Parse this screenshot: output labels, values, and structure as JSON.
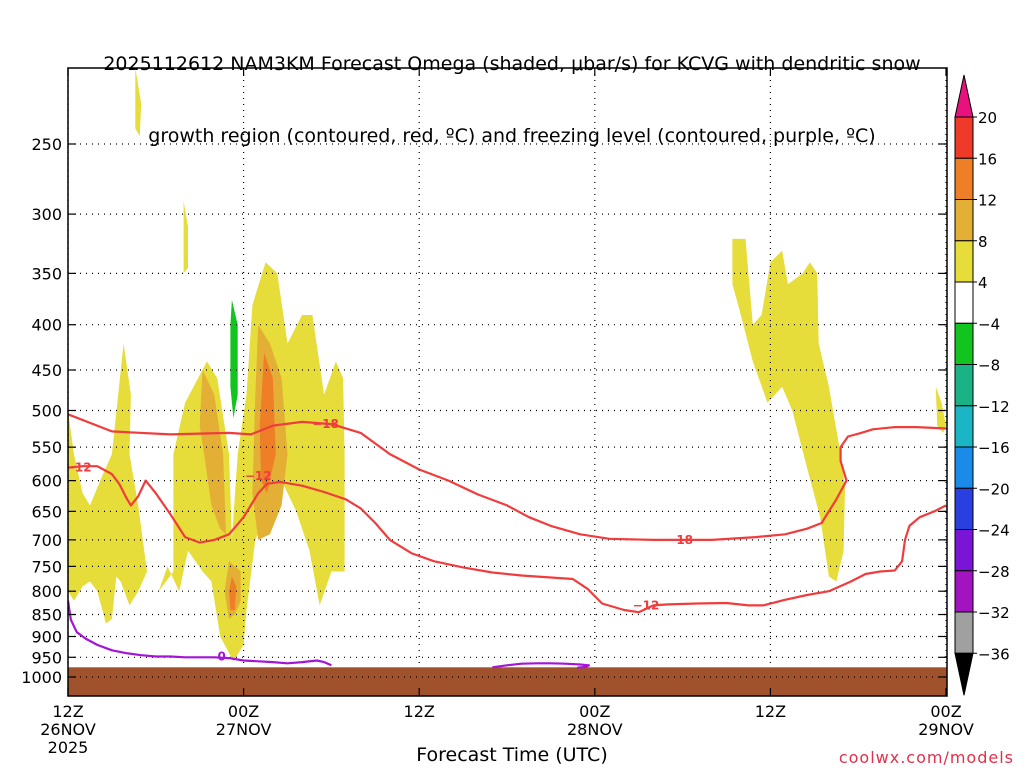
{
  "chart_data": {
    "type": "time-height cross section",
    "title_line1": "2025112612 NAM3KM Forecast Omega (shaded, μbar/s) for KCVG with dendritic snow",
    "title_line2": "growth region (contoured, red, ºC) and freezing level (contoured, purple, ºC)",
    "xlabel": "Forecast Time (UTC)",
    "ylabel": "",
    "x_ticks": [
      {
        "hour": 0,
        "line1": "12Z",
        "line2": "26NOV",
        "line3": "2025"
      },
      {
        "hour": 12,
        "line1": "00Z",
        "line2": "27NOV",
        "line3": ""
      },
      {
        "hour": 24,
        "line1": "12Z",
        "line2": "",
        "line3": ""
      },
      {
        "hour": 36,
        "line1": "00Z",
        "line2": "28NOV",
        "line3": ""
      },
      {
        "hour": 48,
        "line1": "12Z",
        "line2": "",
        "line3": ""
      },
      {
        "hour": 60,
        "line1": "00Z",
        "line2": "29NOV",
        "line3": ""
      }
    ],
    "xlim_hours": [
      0,
      60
    ],
    "y_ticks_hpa": [
      250,
      300,
      350,
      400,
      450,
      500,
      550,
      600,
      650,
      700,
      750,
      800,
      850,
      900,
      950,
      1000
    ],
    "ylim_hpa": [
      1030,
      200
    ],
    "surface_pressure_hpa": 975,
    "colorbar": {
      "labels": [
        "20",
        "16",
        "12",
        "8",
        "4",
        "−4",
        "−8",
        "−12",
        "−16",
        "−20",
        "−24",
        "−28",
        "−32",
        "−36"
      ],
      "colors": [
        "#e8127e",
        "#ef3a2a",
        "#ef7f26",
        "#e3b035",
        "#e6dc3a",
        "#ffffff",
        "#12c41e",
        "#19b386",
        "#1ab6c6",
        "#1a8be8",
        "#2a3fe0",
        "#7a14d6",
        "#a214c0",
        "#a0a0a0",
        "#000000"
      ]
    },
    "omega_fill_colors": {
      "4_8": "#e6dc3a",
      "8_12": "#e3b035",
      "12_16": "#ef7f26",
      "-8_-4": "#12c41e"
    },
    "omega_regions": [
      {
        "level": "4_8",
        "points": [
          [
            0.0,
            500
          ],
          [
            0.4,
            560
          ],
          [
            1.0,
            620
          ],
          [
            1.5,
            640
          ],
          [
            2.2,
            600
          ],
          [
            3.0,
            560
          ],
          [
            3.8,
            420
          ],
          [
            4.3,
            480
          ],
          [
            4.2,
            560
          ],
          [
            4.8,
            640
          ],
          [
            5.4,
            760
          ],
          [
            6.2,
            800
          ],
          [
            7.2,
            760
          ],
          [
            7.2,
            560
          ],
          [
            8.0,
            490
          ],
          [
            9.5,
            440
          ],
          [
            10.2,
            460
          ],
          [
            11.0,
            560
          ],
          [
            11.2,
            700
          ],
          [
            11.6,
            560
          ],
          [
            12.2,
            480
          ],
          [
            12.6,
            380
          ],
          [
            13.5,
            340
          ],
          [
            14.3,
            350
          ],
          [
            15.0,
            420
          ],
          [
            16.0,
            390
          ],
          [
            16.7,
            390
          ],
          [
            17.5,
            480
          ],
          [
            18.3,
            440
          ],
          [
            18.8,
            460
          ],
          [
            18.9,
            560
          ],
          [
            18.9,
            760
          ],
          [
            18.0,
            760
          ],
          [
            17.2,
            830
          ],
          [
            16.5,
            720
          ],
          [
            15.6,
            650
          ],
          [
            14.6,
            600
          ],
          [
            13.8,
            640
          ],
          [
            12.8,
            700
          ],
          [
            12.2,
            840
          ],
          [
            12.0,
            920
          ],
          [
            11.3,
            960
          ],
          [
            10.4,
            900
          ],
          [
            9.8,
            780
          ],
          [
            9.2,
            760
          ],
          [
            8.2,
            720
          ],
          [
            7.6,
            800
          ],
          [
            6.8,
            750
          ],
          [
            6.2,
            800
          ],
          [
            5.4,
            760
          ],
          [
            4.8,
            800
          ],
          [
            4.2,
            830
          ],
          [
            3.6,
            780
          ],
          [
            3.3,
            770
          ],
          [
            3.0,
            860
          ],
          [
            2.6,
            870
          ],
          [
            2.0,
            800
          ],
          [
            1.5,
            780
          ],
          [
            1.0,
            790
          ],
          [
            0.4,
            820
          ],
          [
            0.0,
            800
          ]
        ]
      },
      {
        "level": "4_8",
        "points": [
          [
            4.6,
            200
          ],
          [
            5.0,
            225
          ],
          [
            4.9,
            245
          ],
          [
            4.6,
            240
          ]
        ]
      },
      {
        "level": "4_8",
        "points": [
          [
            7.9,
            290
          ],
          [
            8.2,
            310
          ],
          [
            8.2,
            345
          ],
          [
            7.9,
            350
          ]
        ]
      },
      {
        "level": "4_8",
        "points": [
          [
            45.4,
            320
          ],
          [
            46.3,
            320
          ],
          [
            46.8,
            400
          ],
          [
            47.4,
            390
          ],
          [
            48.0,
            340
          ],
          [
            48.8,
            330
          ],
          [
            49.2,
            360
          ],
          [
            50.2,
            350
          ],
          [
            50.7,
            340
          ],
          [
            51.2,
            350
          ],
          [
            51.3,
            420
          ],
          [
            52.0,
            470
          ],
          [
            52.8,
            560
          ],
          [
            53.1,
            610
          ],
          [
            53.0,
            720
          ],
          [
            52.5,
            780
          ],
          [
            52.0,
            770
          ],
          [
            51.4,
            660
          ],
          [
            50.5,
            580
          ],
          [
            49.5,
            500
          ],
          [
            48.8,
            470
          ],
          [
            47.8,
            490
          ],
          [
            46.8,
            440
          ],
          [
            45.8,
            380
          ],
          [
            45.4,
            360
          ]
        ]
      },
      {
        "level": "4_8",
        "points": [
          [
            59.3,
            470
          ],
          [
            59.7,
            490
          ],
          [
            60.0,
            520
          ],
          [
            59.8,
            530
          ],
          [
            59.4,
            520
          ]
        ]
      },
      {
        "level": "8_12",
        "points": [
          [
            9.2,
            450
          ],
          [
            10.0,
            480
          ],
          [
            10.6,
            560
          ],
          [
            10.8,
            690
          ],
          [
            10.4,
            680
          ],
          [
            9.8,
            640
          ],
          [
            9.3,
            560
          ],
          [
            9.0,
            520
          ]
        ]
      },
      {
        "level": "8_12",
        "points": [
          [
            13.0,
            400
          ],
          [
            13.8,
            420
          ],
          [
            14.6,
            460
          ],
          [
            15.0,
            560
          ],
          [
            14.6,
            640
          ],
          [
            13.8,
            690
          ],
          [
            13.0,
            700
          ],
          [
            12.6,
            620
          ],
          [
            12.8,
            480
          ]
        ]
      },
      {
        "level": "8_12",
        "points": [
          [
            11.0,
            740
          ],
          [
            11.8,
            760
          ],
          [
            11.8,
            820
          ],
          [
            11.4,
            850
          ],
          [
            11.0,
            860
          ],
          [
            10.7,
            800
          ]
        ]
      },
      {
        "level": "12_16",
        "points": [
          [
            13.4,
            430
          ],
          [
            14.0,
            460
          ],
          [
            14.2,
            560
          ],
          [
            13.6,
            620
          ],
          [
            13.2,
            600
          ],
          [
            13.1,
            520
          ]
        ]
      },
      {
        "level": "12_16",
        "points": [
          [
            11.2,
            770
          ],
          [
            11.5,
            790
          ],
          [
            11.4,
            840
          ],
          [
            11.1,
            840
          ],
          [
            11.0,
            800
          ]
        ]
      },
      {
        "level": "-8_-4",
        "points": [
          [
            11.2,
            375
          ],
          [
            11.6,
            400
          ],
          [
            11.6,
            480
          ],
          [
            11.3,
            510
          ],
          [
            11.1,
            470
          ],
          [
            11.1,
            400
          ]
        ]
      }
    ],
    "contours": [
      {
        "label": "-18",
        "color": "#f03c3c",
        "label_positions": [
          [
            17.6,
            518
          ],
          [
            41.8,
            700
          ]
        ],
        "points": [
          [
            0.0,
            505
          ],
          [
            3.0,
            528
          ],
          [
            7.0,
            532
          ],
          [
            11.0,
            530
          ],
          [
            12.5,
            532
          ],
          [
            14.0,
            520
          ],
          [
            16.0,
            515
          ],
          [
            18.0,
            518
          ],
          [
            20.0,
            530
          ],
          [
            22.0,
            560
          ],
          [
            24.0,
            583
          ],
          [
            26.0,
            600
          ],
          [
            28.0,
            622
          ],
          [
            30.0,
            640
          ],
          [
            31.5,
            660
          ],
          [
            33.0,
            675
          ],
          [
            35.0,
            690
          ],
          [
            37.0,
            698
          ],
          [
            40.0,
            700
          ],
          [
            44.0,
            700
          ],
          [
            47.0,
            695
          ],
          [
            49.0,
            690
          ],
          [
            50.5,
            680
          ],
          [
            51.5,
            670
          ],
          [
            52.5,
            630
          ],
          [
            53.2,
            600
          ],
          [
            52.8,
            570
          ],
          [
            52.8,
            550
          ],
          [
            53.3,
            535
          ],
          [
            54.2,
            530
          ],
          [
            55.0,
            525
          ],
          [
            56.5,
            522
          ],
          [
            58.0,
            522
          ],
          [
            60.0,
            524
          ]
        ]
      },
      {
        "label": "-12",
        "color": "#f03c3c",
        "label_positions": [
          [
            0.7,
            580
          ],
          [
            13.0,
            593
          ],
          [
            39.5,
            830
          ]
        ],
        "points": [
          [
            0.0,
            580
          ],
          [
            1.0,
            578
          ],
          [
            2.0,
            578
          ],
          [
            3.0,
            590
          ],
          [
            3.5,
            605
          ],
          [
            4.0,
            628
          ],
          [
            4.3,
            640
          ],
          [
            4.8,
            625
          ],
          [
            5.3,
            600
          ],
          [
            6.0,
            620
          ],
          [
            7.0,
            655
          ],
          [
            8.0,
            695
          ],
          [
            9.0,
            705
          ],
          [
            10.0,
            700
          ],
          [
            11.0,
            690
          ],
          [
            12.0,
            660
          ],
          [
            13.0,
            620
          ],
          [
            13.6,
            605
          ],
          [
            14.5,
            602
          ],
          [
            16.0,
            608
          ],
          [
            17.5,
            618
          ],
          [
            19.0,
            630
          ],
          [
            20.0,
            645
          ],
          [
            21.0,
            670
          ],
          [
            22.0,
            700
          ],
          [
            23.5,
            725
          ],
          [
            25.0,
            740
          ],
          [
            27.0,
            752
          ],
          [
            29.0,
            762
          ],
          [
            31.0,
            768
          ],
          [
            33.0,
            772
          ],
          [
            34.5,
            775
          ],
          [
            35.5,
            795
          ],
          [
            36.5,
            826
          ],
          [
            38.0,
            840
          ],
          [
            39.0,
            845
          ],
          [
            40.0,
            830
          ],
          [
            41.0,
            828
          ],
          [
            43.0,
            826
          ],
          [
            45.0,
            825
          ],
          [
            46.5,
            830
          ],
          [
            47.5,
            830
          ],
          [
            49.0,
            818
          ],
          [
            50.5,
            808
          ],
          [
            52.0,
            800
          ],
          [
            53.5,
            780
          ],
          [
            54.5,
            765
          ],
          [
            55.5,
            760
          ],
          [
            56.5,
            758
          ],
          [
            57.0,
            740
          ],
          [
            57.2,
            700
          ],
          [
            57.5,
            675
          ],
          [
            58.2,
            660
          ],
          [
            59.2,
            650
          ],
          [
            60.0,
            640
          ]
        ]
      },
      {
        "label": "0",
        "color": "#a414d6",
        "label_positions": [
          [
            10.5,
            948
          ]
        ],
        "points": [
          [
            0.0,
            820
          ],
          [
            0.2,
            862
          ],
          [
            0.6,
            890
          ],
          [
            1.2,
            905
          ],
          [
            2.0,
            920
          ],
          [
            3.0,
            933
          ],
          [
            4.0,
            940
          ],
          [
            5.0,
            945
          ],
          [
            6.0,
            948
          ],
          [
            7.0,
            948
          ],
          [
            8.0,
            950
          ],
          [
            9.0,
            950
          ],
          [
            10.0,
            950
          ],
          [
            11.0,
            952
          ],
          [
            12.0,
            958
          ],
          [
            13.0,
            960
          ],
          [
            14.0,
            962
          ],
          [
            15.0,
            965
          ],
          [
            16.0,
            962
          ],
          [
            17.0,
            958
          ],
          [
            17.5,
            962
          ],
          [
            18.0,
            970
          ]
        ]
      },
      {
        "label": "",
        "color": "#a414d6",
        "label_positions": [],
        "points": [
          [
            29.0,
            975
          ],
          [
            30.0,
            970
          ],
          [
            31.0,
            966
          ],
          [
            32.0,
            965
          ],
          [
            33.0,
            965
          ],
          [
            34.0,
            966
          ],
          [
            35.0,
            968
          ],
          [
            35.6,
            970
          ],
          [
            35.4,
            974
          ],
          [
            34.8,
            976
          ]
        ]
      }
    ],
    "credit": "coolwx.com/models"
  }
}
